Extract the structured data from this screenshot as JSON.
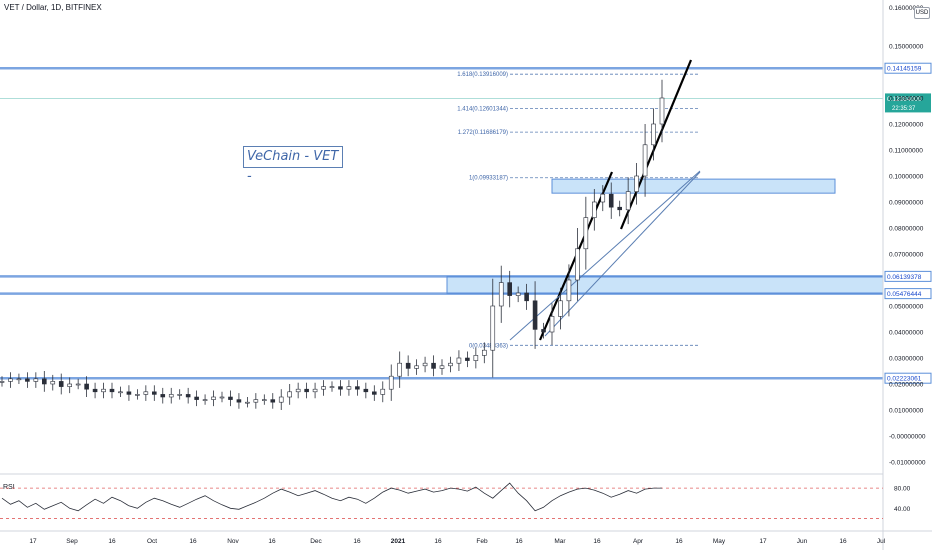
{
  "header": {
    "title": "VET / Dollar, 1D, BITFINEX"
  },
  "annotation": {
    "note": "VeChain - VET -"
  },
  "chart_data": [
    {
      "type": "line",
      "title": "VET / Dollar, 1D, BITFINEX",
      "price_unit": "USD",
      "x_tick_labels": [
        "17",
        "Sep",
        "16",
        "Oct",
        "16",
        "Nov",
        "16",
        "Dec",
        "16",
        "2021",
        "16",
        "Feb",
        "16",
        "Mar",
        "16",
        "Apr",
        "16",
        "May",
        "17",
        "Jun",
        "16",
        "Jul"
      ],
      "y_tick_labels": [
        "0.15000000",
        "0.13000000",
        "0.12000000",
        "0.11000000",
        "0.10000000",
        "0.09000000",
        "0.08000000",
        "0.07000000",
        "0.05000000",
        "0.04000000",
        "0.03000000",
        "0.02000000",
        "0.01000000",
        "-0.00000000",
        "-0.01000000"
      ],
      "y_top_label": "0.16000000",
      "ylim": [
        -0.015,
        0.165
      ],
      "grid": false,
      "current_price": {
        "value": "0.12984000",
        "countdown": "22:35:37",
        "color": "#26a69a"
      },
      "horizontal_levels": [
        {
          "value": 0.14145159,
          "label": "0.14145159",
          "color": "#5b8fd9"
        },
        {
          "value": 0.06139378,
          "label": "0.06139378",
          "color": "#5b8fd9"
        },
        {
          "value": 0.05476444,
          "label": "0.05476444",
          "color": "#5b8fd9"
        },
        {
          "value": 0.02223061,
          "label": "0.02223061",
          "color": "#5b8fd9"
        }
      ],
      "zones": [
        {
          "from": 0.05476444,
          "to": 0.06139378,
          "color": "#bcdcf7"
        },
        {
          "from": 0.0934,
          "to": 0.0988,
          "color": "#bcdcf7"
        }
      ],
      "fib_levels": [
        {
          "ratio": "1.618",
          "value": 0.13916009,
          "label": "1.618(0.13916009)"
        },
        {
          "ratio": "1.414",
          "value": 0.12601344,
          "label": "1.414(0.12601344)"
        },
        {
          "ratio": "1.272",
          "value": 0.11686179,
          "label": "1.272(0.11686179)"
        },
        {
          "ratio": "1",
          "value": 0.09933187,
          "label": "1(0.09933187)"
        },
        {
          "ratio": "0",
          "value": 0.03488363,
          "label": "0(0.03488363)"
        }
      ],
      "series": [
        {
          "values": [
            0.021,
            0.022,
            0.022,
            0.021,
            0.022,
            0.02,
            0.021,
            0.019,
            0.02,
            0.02,
            0.018,
            0.017,
            0.018,
            0.017,
            0.017,
            0.016,
            0.016,
            0.017,
            0.016,
            0.015,
            0.016,
            0.016,
            0.015,
            0.014,
            0.014,
            0.015,
            0.015,
            0.014,
            0.013,
            0.013,
            0.014,
            0.014,
            0.013,
            0.015,
            0.017,
            0.018,
            0.017,
            0.018,
            0.019,
            0.019,
            0.018,
            0.019,
            0.018,
            0.017,
            0.016,
            0.018,
            0.023,
            0.028,
            0.026,
            0.027,
            0.028,
            0.026,
            0.027,
            0.028,
            0.03,
            0.029,
            0.031,
            0.033,
            0.05,
            0.059,
            0.054,
            0.055,
            0.052,
            0.041,
            0.04,
            0.046,
            0.052,
            0.06,
            0.072,
            0.084,
            0.09,
            0.093,
            0.088,
            0.087,
            0.094,
            0.1,
            0.112,
            0.12,
            0.13
          ]
        }
      ]
    },
    {
      "type": "line",
      "title": "RSI",
      "yticks": [
        "80.00",
        "40.00"
      ],
      "levels": [
        80,
        20
      ],
      "series": [
        {
          "name": "RSI",
          "values": [
            60,
            48,
            55,
            42,
            50,
            38,
            45,
            52,
            40,
            35,
            47,
            58,
            50,
            62,
            55,
            45,
            40,
            52,
            60,
            55,
            48,
            42,
            50,
            58,
            65,
            55,
            47,
            40,
            38,
            45,
            52,
            60,
            70,
            78,
            72,
            65,
            70,
            75,
            68,
            60,
            55,
            62,
            58,
            50,
            60,
            72,
            80,
            76,
            70,
            74,
            78,
            72,
            75,
            80,
            78,
            74,
            82,
            70,
            60,
            75,
            90,
            70,
            55,
            35,
            42,
            55,
            65,
            72,
            78,
            80,
            76,
            70,
            62,
            68,
            75,
            70,
            78,
            80,
            80
          ]
        }
      ]
    }
  ]
}
